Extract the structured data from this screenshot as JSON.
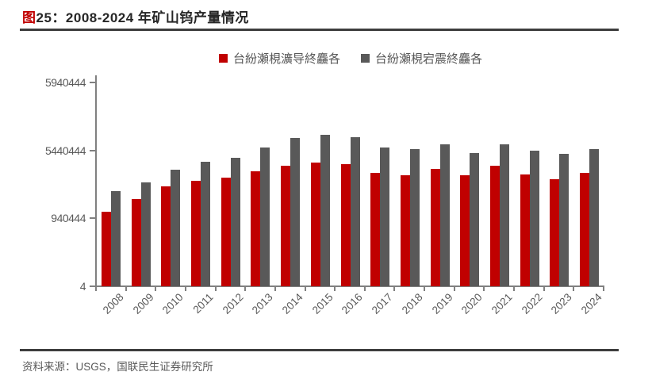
{
  "page": {
    "title_prefix": "图",
    "title_rest": "25：2008-2024 年矿山钨产量情况",
    "source_note": "资料来源：USGS，国联民生证券研究所"
  },
  "colors": {
    "series_red": "#c00000",
    "series_gray": "#595959",
    "title_accent": "#c00000",
    "divider": "#3d3d3d",
    "axis": "#808080",
    "tick_text": "#595959"
  },
  "chart_data": {
    "type": "bar",
    "title": "图25：2008-2024 年矿山钨产量情况",
    "categories": [
      "2008",
      "2009",
      "2010",
      "2011",
      "2012",
      "2013",
      "2014",
      "2015",
      "2016",
      "2017",
      "2018",
      "2019",
      "2020",
      "2021",
      "2022",
      "2023",
      "2024"
    ],
    "series": [
      {
        "name": "台紛瀬梘瀇导終麤各",
        "color": "#c00000",
        "values": [
          55000,
          64000,
          73500,
          77500,
          80000,
          84500,
          88500,
          91000,
          90000,
          83500,
          81500,
          86500,
          82000,
          88500,
          82500,
          79000,
          83500
        ]
      },
      {
        "name": "台紛瀬梘宕震終麤各",
        "color": "#595959",
        "values": [
          70000,
          76500,
          86000,
          91500,
          94500,
          102000,
          109000,
          111500,
          110000,
          102000,
          101000,
          104500,
          98000,
          104500,
          100000,
          97500,
          101000
        ]
      }
    ],
    "ylim": [
      0,
      150000
    ],
    "y_ticks": [
      {
        "value": 150000,
        "label": "5940444"
      },
      {
        "value": 100000,
        "label": "5440444"
      },
      {
        "value": 50000,
        "label": "940444"
      },
      {
        "value": 0,
        "label": "4"
      }
    ],
    "xlabel": "",
    "ylabel": "",
    "grid": false,
    "legend_position": "top-center"
  }
}
